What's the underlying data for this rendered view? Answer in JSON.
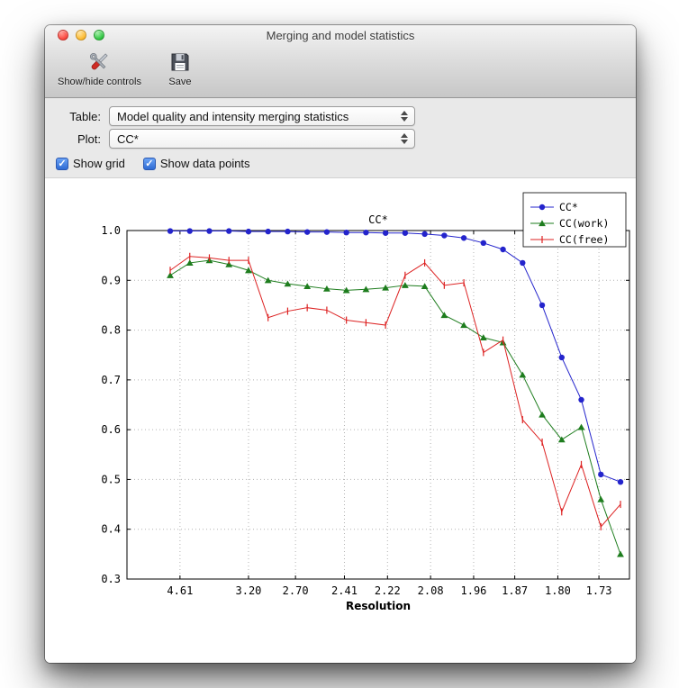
{
  "window": {
    "title": "Merging and model statistics"
  },
  "toolbar": {
    "items": [
      {
        "label": "Show/hide controls",
        "icon": "tools-icon"
      },
      {
        "label": "Save",
        "icon": "save-icon"
      }
    ]
  },
  "controls": {
    "table_label": "Table:",
    "table_value": "Model quality and intensity merging statistics",
    "plot_label": "Plot:",
    "plot_value": "CC*",
    "checkboxes": [
      {
        "label": "Show grid",
        "checked": true
      },
      {
        "label": "Show data points",
        "checked": true
      }
    ]
  },
  "chart_data": {
    "type": "line",
    "title": "CC*",
    "xlabel": "Resolution",
    "ylim": [
      0.3,
      1.0
    ],
    "yticks": [
      0.3,
      0.4,
      0.5,
      0.6,
      0.7,
      0.8,
      0.9,
      1.0
    ],
    "x_tick_labels": [
      "4.61",
      "3.20",
      "2.70",
      "2.41",
      "2.22",
      "2.08",
      "1.96",
      "1.87",
      "1.80",
      "1.73"
    ],
    "x_tick_positions": [
      0.5,
      4.0,
      6.4,
      8.9,
      11.1,
      13.3,
      15.5,
      17.6,
      19.8,
      21.9
    ],
    "grid": true,
    "show_data_points": true,
    "legend_position": "upper right",
    "series": [
      {
        "name": "CC*",
        "color": "#2424cc",
        "marker": "circle",
        "values": [
          0.999,
          0.999,
          0.999,
          0.999,
          0.998,
          0.998,
          0.998,
          0.997,
          0.997,
          0.996,
          0.996,
          0.995,
          0.995,
          0.993,
          0.99,
          0.985,
          0.975,
          0.962,
          0.935,
          0.85,
          0.745,
          0.66,
          0.51,
          0.495
        ]
      },
      {
        "name": "CC(work)",
        "color": "#1e7d1e",
        "marker": "triangle",
        "values": [
          0.91,
          0.935,
          0.94,
          0.932,
          0.92,
          0.9,
          0.893,
          0.888,
          0.883,
          0.88,
          0.882,
          0.885,
          0.89,
          0.888,
          0.83,
          0.81,
          0.785,
          0.775,
          0.71,
          0.63,
          0.58,
          0.605,
          0.46,
          0.35
        ]
      },
      {
        "name": "CC(free)",
        "color": "#dd2222",
        "marker": "vline",
        "values": [
          0.92,
          0.948,
          0.945,
          0.94,
          0.94,
          0.825,
          0.838,
          0.845,
          0.84,
          0.82,
          0.815,
          0.81,
          0.91,
          0.935,
          0.89,
          0.895,
          0.755,
          0.78,
          0.62,
          0.575,
          0.435,
          0.53,
          0.405,
          0.45
        ]
      }
    ]
  }
}
